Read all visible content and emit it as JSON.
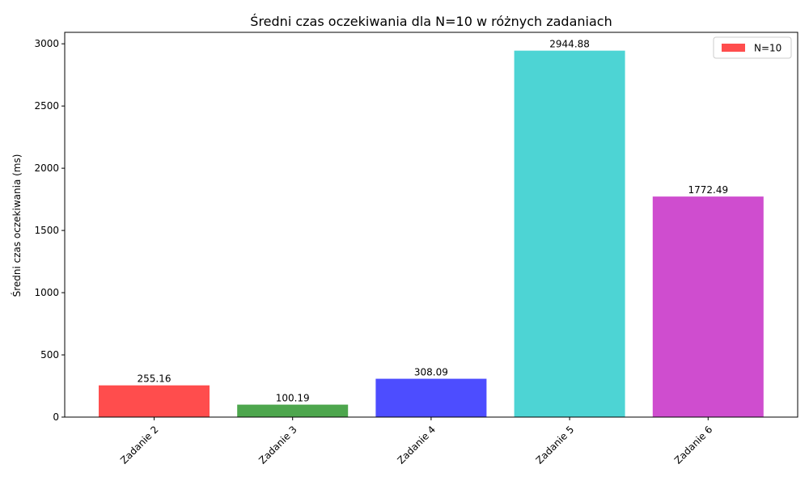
{
  "chart_data": {
    "type": "bar",
    "title": "Średni czas oczekiwania dla N=10 w różnych zadaniach",
    "xlabel": "",
    "ylabel": "Średni czas oczekiwania (ms)",
    "categories": [
      "Zadanie 2",
      "Zadanie 3",
      "Zadanie 4",
      "Zadanie 5",
      "Zadanie 6"
    ],
    "series": [
      {
        "name": "N=10",
        "values": [
          255.16,
          100.19,
          308.09,
          2944.88,
          1772.49
        ],
        "labels": [
          "255.16",
          "100.19",
          "308.09",
          "2944.88",
          "1772.49"
        ]
      }
    ],
    "colors": [
      "#ff4d4d",
      "#4da64d",
      "#4d4dff",
      "#4dd4d4",
      "#cf4dcf"
    ],
    "ylim": [
      0,
      3092.12
    ],
    "yticks": [
      0,
      500,
      1000,
      1500,
      2000,
      2500,
      3000
    ],
    "ytick_labels": [
      "0",
      "500",
      "1000",
      "1500",
      "2000",
      "2500",
      "3000"
    ],
    "grid": false,
    "legend": {
      "placement": "top-right",
      "entries": [
        "N=10"
      ]
    }
  }
}
